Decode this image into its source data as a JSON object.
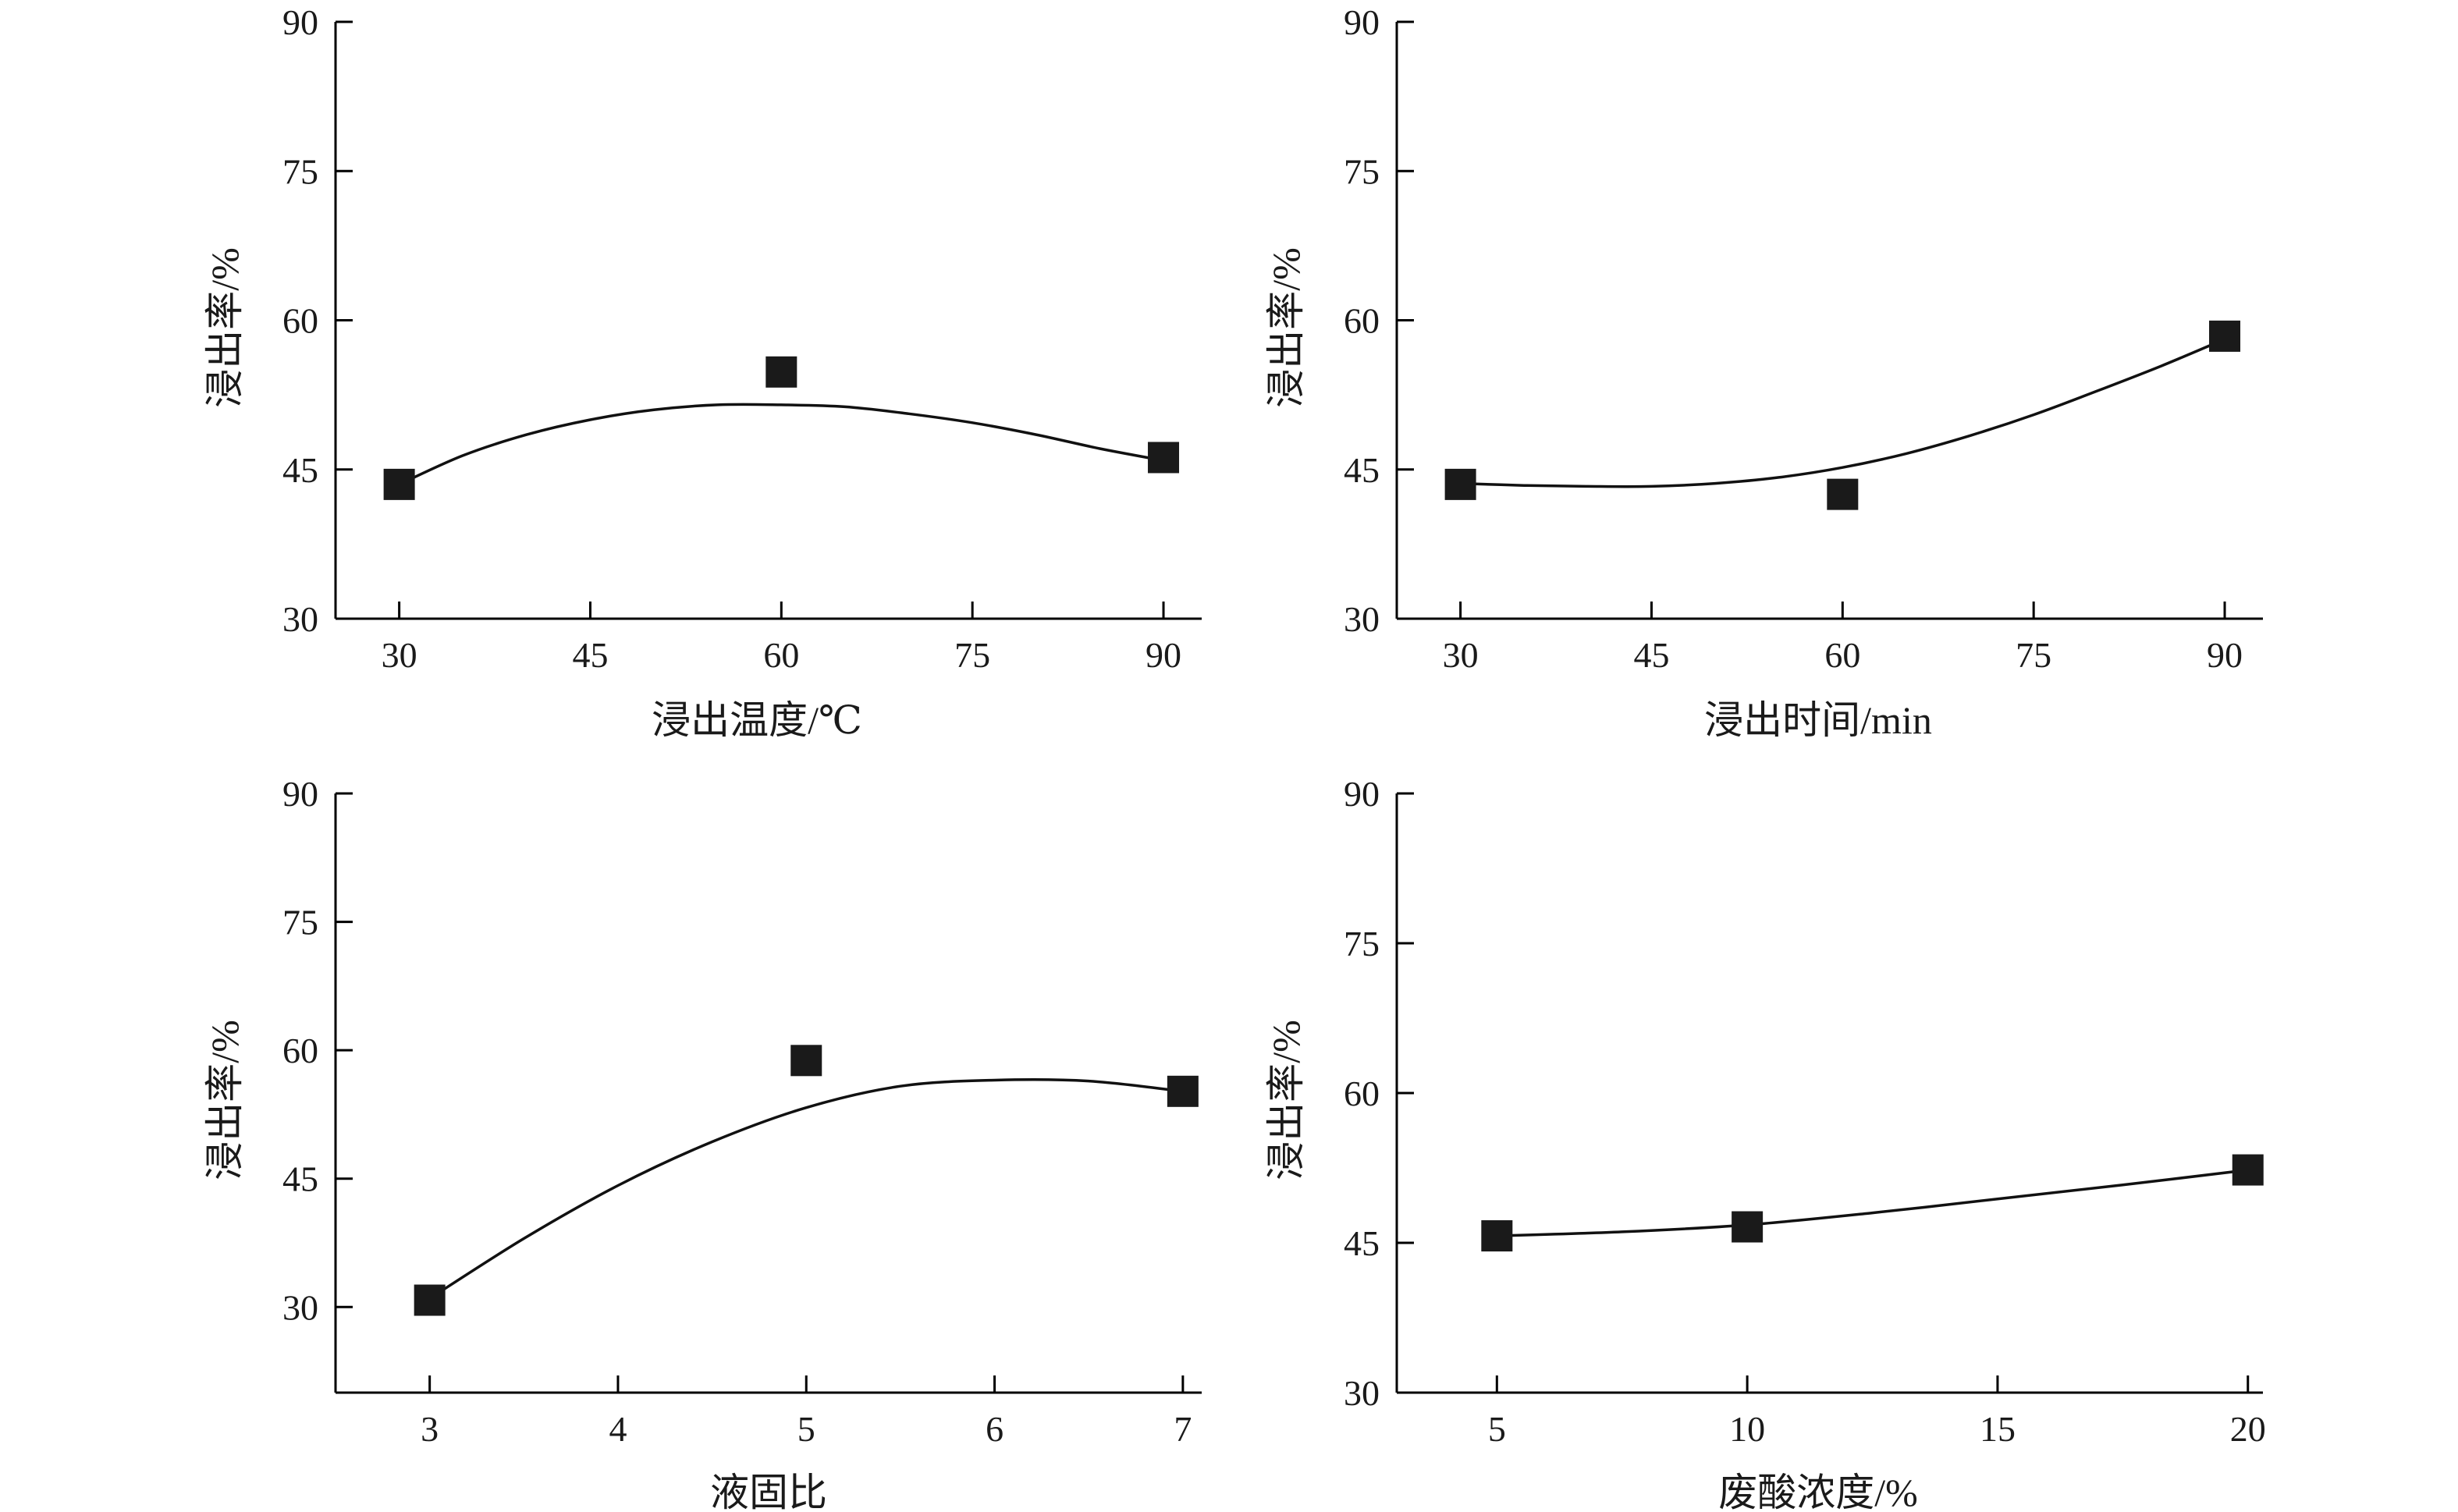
{
  "chart_data": [
    {
      "type": "scatter",
      "xlabel": "浸出温度/℃",
      "ylabel": "浸出率/%",
      "xlim": [
        25,
        93
      ],
      "ylim": [
        30,
        90
      ],
      "xticks": [
        30,
        45,
        60,
        75,
        90
      ],
      "yticks": [
        30,
        45,
        60,
        75,
        90
      ],
      "points": {
        "x": [
          30,
          60,
          90
        ],
        "y": [
          43.5,
          54.8,
          46.2
        ]
      },
      "curve": {
        "x": [
          30,
          35,
          40,
          45,
          50,
          55,
          60,
          65,
          70,
          75,
          80,
          85,
          90
        ],
        "y": [
          43.5,
          46.4,
          48.5,
          50.0,
          51.0,
          51.5,
          51.5,
          51.3,
          50.6,
          49.7,
          48.5,
          47.1,
          45.9
        ]
      }
    },
    {
      "type": "scatter",
      "xlabel": "浸出时间/min",
      "ylabel": "浸出率/%",
      "xlim": [
        25,
        93
      ],
      "ylim": [
        30,
        90
      ],
      "xticks": [
        30,
        45,
        60,
        75,
        90
      ],
      "yticks": [
        30,
        45,
        60,
        75,
        90
      ],
      "points": {
        "x": [
          30,
          60,
          90
        ],
        "y": [
          43.5,
          42.5,
          58.4
        ]
      },
      "curve": {
        "x": [
          30,
          35,
          40,
          45,
          50,
          55,
          60,
          65,
          70,
          75,
          80,
          85,
          90
        ],
        "y": [
          43.6,
          43.4,
          43.3,
          43.3,
          43.6,
          44.2,
          45.2,
          46.6,
          48.4,
          50.5,
          52.9,
          55.4,
          58.1
        ]
      }
    },
    {
      "type": "scatter",
      "xlabel": "液固比",
      "ylabel": "浸出率/%",
      "xlim": [
        2.5,
        7.1
      ],
      "ylim": [
        20,
        90
      ],
      "xticks": [
        3,
        4,
        5,
        6,
        7
      ],
      "yticks": [
        30,
        45,
        60,
        75,
        90
      ],
      "points": {
        "x": [
          3,
          5,
          7
        ],
        "y": [
          30.8,
          58.8,
          55.2
        ]
      },
      "curve": {
        "x": [
          3,
          3.5,
          4,
          4.5,
          5,
          5.5,
          6,
          6.5,
          7
        ],
        "y": [
          31.0,
          38.0,
          44.2,
          49.3,
          53.3,
          55.8,
          56.5,
          56.4,
          55.2
        ]
      }
    },
    {
      "type": "scatter",
      "xlabel": "废酸浓度/%",
      "ylabel": "浸出率/%",
      "xlim": [
        3,
        20.3
      ],
      "ylim": [
        30,
        90
      ],
      "xticks": [
        5,
        10,
        15,
        20
      ],
      "yticks": [
        30,
        45,
        60,
        75,
        90
      ],
      "points": {
        "x": [
          5,
          10,
          20
        ],
        "y": [
          45.7,
          46.6,
          52.3
        ]
      },
      "curve": {
        "x": [
          5,
          7.5,
          10,
          12.5,
          15,
          17.5,
          20
        ],
        "y": [
          45.7,
          46.1,
          46.8,
          48.0,
          49.4,
          50.8,
          52.3
        ]
      }
    }
  ]
}
